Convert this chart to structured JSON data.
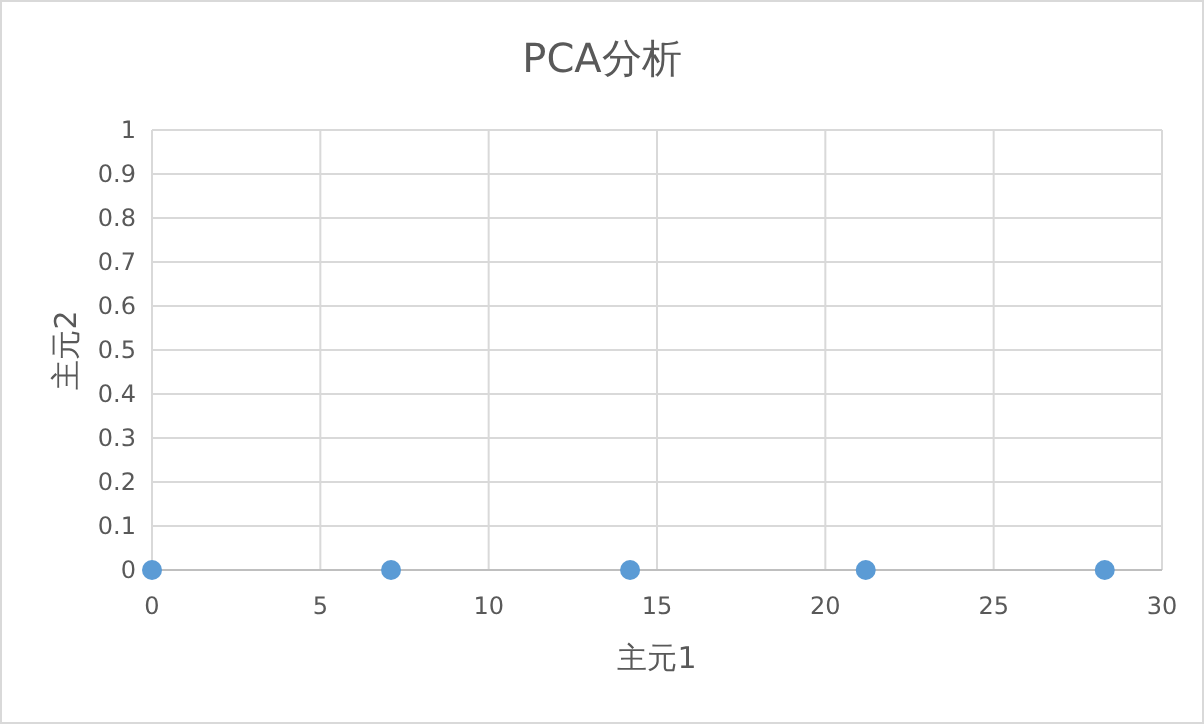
{
  "chart_data": {
    "type": "scatter",
    "title": "PCA分析",
    "xlabel": "主元1",
    "ylabel": "主元2",
    "x": [
      0,
      7.1,
      14.2,
      21.2,
      28.3
    ],
    "series": [
      {
        "color": "#5b9bd5",
        "values": [
          0,
          0,
          0,
          0,
          0
        ]
      }
    ],
    "xlim": [
      0,
      30
    ],
    "xticks": [
      0,
      5,
      10,
      15,
      20,
      25,
      30
    ],
    "ylim": [
      0,
      1
    ],
    "yticks": [
      0,
      0.1,
      0.2,
      0.3,
      0.4,
      0.5,
      0.6,
      0.7,
      0.8,
      0.9,
      1
    ],
    "grid": true,
    "marker": "circle"
  }
}
